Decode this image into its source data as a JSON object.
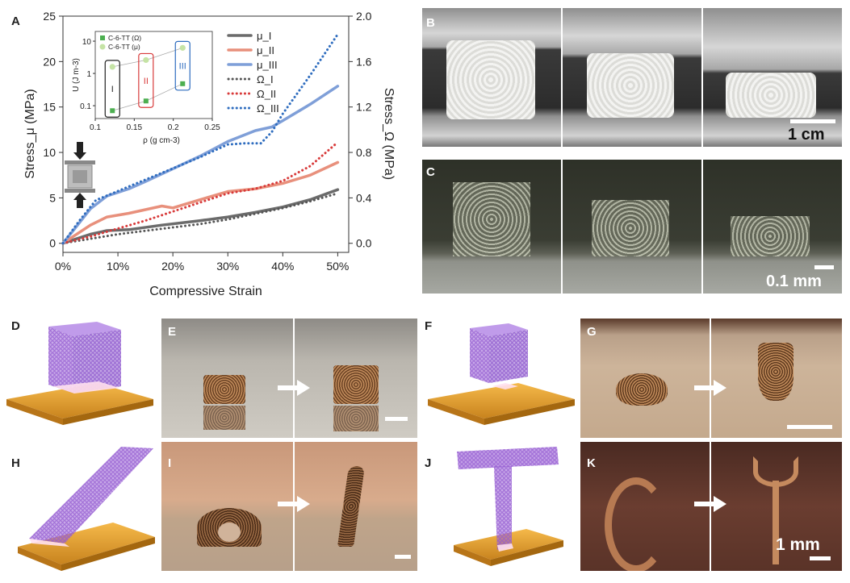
{
  "panels": {
    "A": "A",
    "B": "B",
    "C": "C",
    "D": "D",
    "E": "E",
    "F": "F",
    "G": "G",
    "H": "H",
    "I": "I",
    "J": "J",
    "K": "K"
  },
  "scale_bars": {
    "B": "1 cm",
    "C": "0.1 mm",
    "K": "1 mm"
  },
  "colors": {
    "mu_I": "#6b6b6b",
    "mu_II": "#e8907c",
    "mu_III": "#7f9fd8",
    "omega_I": "#555555",
    "omega_II": "#d83a3a",
    "omega_III": "#2f6dbf",
    "lattice": "#9b63d6",
    "base": "#e3a23a"
  },
  "chart_data": {
    "type": "line",
    "xlabel": "Compressive Strain",
    "ylabel": "Stress_μ (MPa)",
    "y2label": "Stress_Ω (MPa)",
    "xlim": [
      0,
      52
    ],
    "ylim": [
      -1,
      25
    ],
    "y2lim": [
      -0.08,
      2.0
    ],
    "x_ticks": [
      "0%",
      "10%",
      "20%",
      "30%",
      "40%",
      "50%"
    ],
    "y_ticks": [
      "0",
      "5",
      "10",
      "15",
      "20",
      "25"
    ],
    "y2_ticks": [
      "0.0",
      "0.4",
      "0.8",
      "1.2",
      "1.6",
      "2.0"
    ],
    "legend_position": "top-right",
    "series": [
      {
        "name": "μ_I",
        "style": "solid",
        "axis": "left",
        "x": [
          0,
          2,
          5,
          8,
          12,
          18,
          25,
          30,
          35,
          40,
          45,
          50
        ],
        "y": [
          0,
          0.4,
          1.0,
          1.4,
          1.5,
          2.0,
          2.5,
          2.9,
          3.4,
          4.0,
          4.8,
          5.9
        ]
      },
      {
        "name": "μ_II",
        "style": "solid",
        "axis": "left",
        "x": [
          0,
          2,
          5,
          8,
          12,
          15,
          18,
          20,
          25,
          30,
          35,
          40,
          45,
          50
        ],
        "y": [
          0,
          0.8,
          2.0,
          2.9,
          3.3,
          3.7,
          4.1,
          3.9,
          4.8,
          5.7,
          6.0,
          6.6,
          7.5,
          8.9
        ]
      },
      {
        "name": "μ_III",
        "style": "solid",
        "axis": "left",
        "x": [
          0,
          2,
          5,
          8,
          12,
          15,
          20,
          25,
          30,
          35,
          38,
          40,
          45,
          50
        ],
        "y": [
          0,
          1.5,
          3.8,
          5.2,
          6.0,
          6.8,
          8.2,
          9.6,
          11.2,
          12.4,
          12.8,
          13.5,
          15.3,
          17.3
        ]
      },
      {
        "name": "Ω_I",
        "style": "dotted",
        "axis": "right",
        "x": [
          0,
          5,
          10,
          15,
          20,
          25,
          30,
          35,
          40,
          45,
          50
        ],
        "y": [
          0,
          0.04,
          0.08,
          0.11,
          0.14,
          0.17,
          0.21,
          0.26,
          0.31,
          0.37,
          0.44
        ]
      },
      {
        "name": "Ω_II",
        "style": "dotted",
        "axis": "right",
        "x": [
          0,
          5,
          10,
          15,
          20,
          25,
          30,
          35,
          40,
          45,
          50
        ],
        "y": [
          0,
          0.06,
          0.13,
          0.2,
          0.28,
          0.36,
          0.44,
          0.48,
          0.55,
          0.68,
          0.89
        ]
      },
      {
        "name": "Ω_III",
        "style": "dotted",
        "axis": "right",
        "x": [
          0,
          3,
          6,
          10,
          15,
          20,
          25,
          30,
          33,
          36,
          38,
          40,
          45,
          50
        ],
        "y": [
          0,
          0.2,
          0.38,
          0.46,
          0.56,
          0.66,
          0.76,
          0.87,
          0.88,
          0.88,
          0.98,
          1.14,
          1.48,
          1.84
        ]
      }
    ],
    "inset": {
      "xlabel": "ρ (g cm-3)",
      "ylabel": "U (J m-3)",
      "x_ticks": [
        "0.1",
        "0.15",
        "0.2",
        "0.25"
      ],
      "y_ticks": [
        "10",
        "1",
        "0.1"
      ],
      "legend": [
        "C-6-TT (Ω)",
        "C-6-TT (μ)"
      ],
      "scale": "log-y",
      "groups": [
        {
          "label": "I",
          "rho": 0.122,
          "U_omega": 0.07,
          "U_mu": 1.6
        },
        {
          "label": "II",
          "rho": 0.165,
          "U_omega": 0.14,
          "U_mu": 2.6
        },
        {
          "label": "III",
          "rho": 0.212,
          "U_omega": 0.48,
          "U_mu": 6.2
        }
      ]
    }
  }
}
